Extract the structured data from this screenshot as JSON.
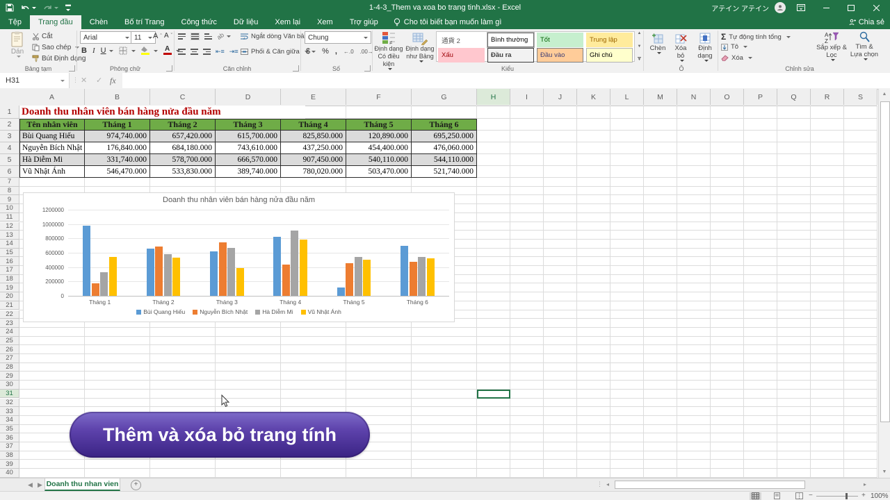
{
  "title_bar": {
    "document_title": "1-4-3_Them va xoa bo trang tinh.xlsx  -  Excel",
    "user_name": "アテイン アテイン"
  },
  "ribbon": {
    "tabs": [
      {
        "label": "Tệp",
        "active": false
      },
      {
        "label": "Trang đầu",
        "active": true
      },
      {
        "label": "Chèn",
        "active": false
      },
      {
        "label": "Bố trí Trang",
        "active": false
      },
      {
        "label": "Công thức",
        "active": false
      },
      {
        "label": "Dữ liệu",
        "active": false
      },
      {
        "label": "Xem lại",
        "active": false
      },
      {
        "label": "Xem",
        "active": false
      },
      {
        "label": "Trợ giúp",
        "active": false
      }
    ],
    "tell_me": "Cho tôi biết bạn muốn làm gì",
    "share_label": "Chia sẻ",
    "clipboard": {
      "group": "Bảng tạm",
      "paste": "Dán",
      "cut": "Cắt",
      "copy": "Sao chép",
      "format_painter": "Bút Định dạng"
    },
    "font": {
      "group": "Phông chữ",
      "family": "Arial",
      "size": "11"
    },
    "alignment": {
      "group": "Căn chỉnh",
      "wrap": "Ngắt dòng Văn bản",
      "merge": "Phối & Căn giữa"
    },
    "number": {
      "group": "Số",
      "format": "Chung"
    },
    "styles": {
      "group": "Kiểu",
      "conditional": "Định dạng Có điều kiện",
      "format_as_table": "Định dạng như Bảng",
      "gallery": [
        {
          "label": "通貨 2",
          "bg": "#FFFFFF",
          "color": "#595959",
          "border": "#FFFFFF",
          "bold": false,
          "selected": false
        },
        {
          "label": "Bình thường",
          "bg": "#FFFFFF",
          "color": "#000000",
          "border": "#6e6e6e",
          "bold": false,
          "selected": true
        },
        {
          "label": "Tốt",
          "bg": "#C6EFCE",
          "color": "#006100",
          "border": "#C6EFCE",
          "bold": false,
          "selected": false
        },
        {
          "label": "Trung lập",
          "bg": "#FFEB9C",
          "color": "#9C6500",
          "border": "#FFEB9C",
          "bold": false,
          "selected": false
        },
        {
          "label": "Xấu",
          "bg": "#FFC7CE",
          "color": "#9C0006",
          "border": "#FFC7CE",
          "bold": false,
          "selected": false
        },
        {
          "label": "Đầu ra",
          "bg": "#F2F2F2",
          "color": "#3F3F3F",
          "border": "#3F3F3F",
          "bold": true,
          "selected": false
        },
        {
          "label": "Đầu vào",
          "bg": "#FFCC99",
          "color": "#3F3F76",
          "border": "#7F7F7F",
          "bold": false,
          "selected": false
        },
        {
          "label": "Ghi chú",
          "bg": "#FFFFCC",
          "color": "#000000",
          "border": "#B2B2B2",
          "bold": false,
          "selected": false
        }
      ]
    },
    "cells": {
      "group": "Ô",
      "insert": "Chèn",
      "delete": "Xóa bỏ",
      "format": "Định dạng"
    },
    "editing": {
      "group": "Chỉnh sửa",
      "autosum": "Tự động tính tổng",
      "fill": "Tô",
      "clear": "Xóa",
      "sort": "Sắp xếp & Lọc",
      "find": "Tìm & Lựa chọn"
    }
  },
  "formula_bar": {
    "name_box": "H31",
    "formula": ""
  },
  "grid": {
    "columns": [
      "A",
      "B",
      "C",
      "D",
      "E",
      "F",
      "G",
      "H",
      "I",
      "J",
      "K",
      "L",
      "M",
      "N",
      "O",
      "P",
      "Q",
      "R",
      "S"
    ],
    "first_row": 1,
    "last_row": 40,
    "active_cell": "H31"
  },
  "sheet": {
    "title": "Doanh thu nhân viên bán hàng nửa đầu năm",
    "title_color": "#B30000",
    "table": {
      "header_bg": "#6FAC47",
      "header_color": "#1a1a1a",
      "shaded_bg": "#DBDBDB",
      "headers": [
        "Tên nhân viên",
        "Tháng 1",
        "Tháng 2",
        "Tháng 3",
        "Tháng 4",
        "Tháng 5",
        "Tháng 6"
      ],
      "rows": [
        {
          "name": "Bùi Quang Hiếu",
          "shaded": true,
          "values": [
            "974,740.000",
            "657,420.000",
            "615,700.000",
            "825,850.000",
            "120,890.000",
            "695,250.000"
          ]
        },
        {
          "name": "Nguyễn Bích Nhật",
          "shaded": false,
          "values": [
            "176,840.000",
            "684,180.000",
            "743,610.000",
            "437,250.000",
            "454,400.000",
            "476,060.000"
          ]
        },
        {
          "name": "Hà Diễm Mi",
          "shaded": true,
          "values": [
            "331,740.000",
            "578,700.000",
            "666,570.000",
            "907,450.000",
            "540,110.000",
            "544,110.000"
          ]
        },
        {
          "name": "Vũ Nhật Ánh",
          "shaded": false,
          "values": [
            "546,470.000",
            "533,830.000",
            "389,740.000",
            "780,020.000",
            "503,470.000",
            "521,740.000"
          ]
        }
      ]
    }
  },
  "chart_data": {
    "type": "bar",
    "title": "Doanh thu nhân viên bán hàng nửa đầu năm",
    "categories": [
      "Tháng 1",
      "Tháng 2",
      "Tháng 3",
      "Tháng 4",
      "Tháng 5",
      "Tháng 6"
    ],
    "series": [
      {
        "name": "Bùi Quang Hiếu",
        "color": "#5B9BD5",
        "values": [
          974740,
          657420,
          615700,
          825850,
          120890,
          695250
        ]
      },
      {
        "name": "Nguyễn Bích Nhật",
        "color": "#ED7D31",
        "values": [
          176840,
          684180,
          743610,
          437250,
          454400,
          476060
        ]
      },
      {
        "name": "Hà Diễm Mi",
        "color": "#A5A5A5",
        "values": [
          331740,
          578700,
          666570,
          907450,
          540110,
          544110
        ]
      },
      {
        "name": "Vũ Nhật Ánh",
        "color": "#FFC000",
        "values": [
          546470,
          533830,
          389740,
          780020,
          503470,
          521740
        ]
      }
    ],
    "ylim": [
      0,
      1200000
    ],
    "ytick_step": 200000,
    "grid": true,
    "legend_position": "bottom"
  },
  "banner": {
    "text": "Thêm và xóa bỏ trang tính",
    "bg_top": "#7E6CC9",
    "bg_bottom": "#3A2384",
    "text_color": "#FFFFFF"
  },
  "sheet_tabs": {
    "active": "Doanh thu nhan vien"
  },
  "status_bar": {
    "zoom_level": "100%"
  },
  "colors": {
    "excel_green": "#217346",
    "series": [
      "#5B9BD5",
      "#ED7D31",
      "#A5A5A5",
      "#FFC000"
    ]
  }
}
